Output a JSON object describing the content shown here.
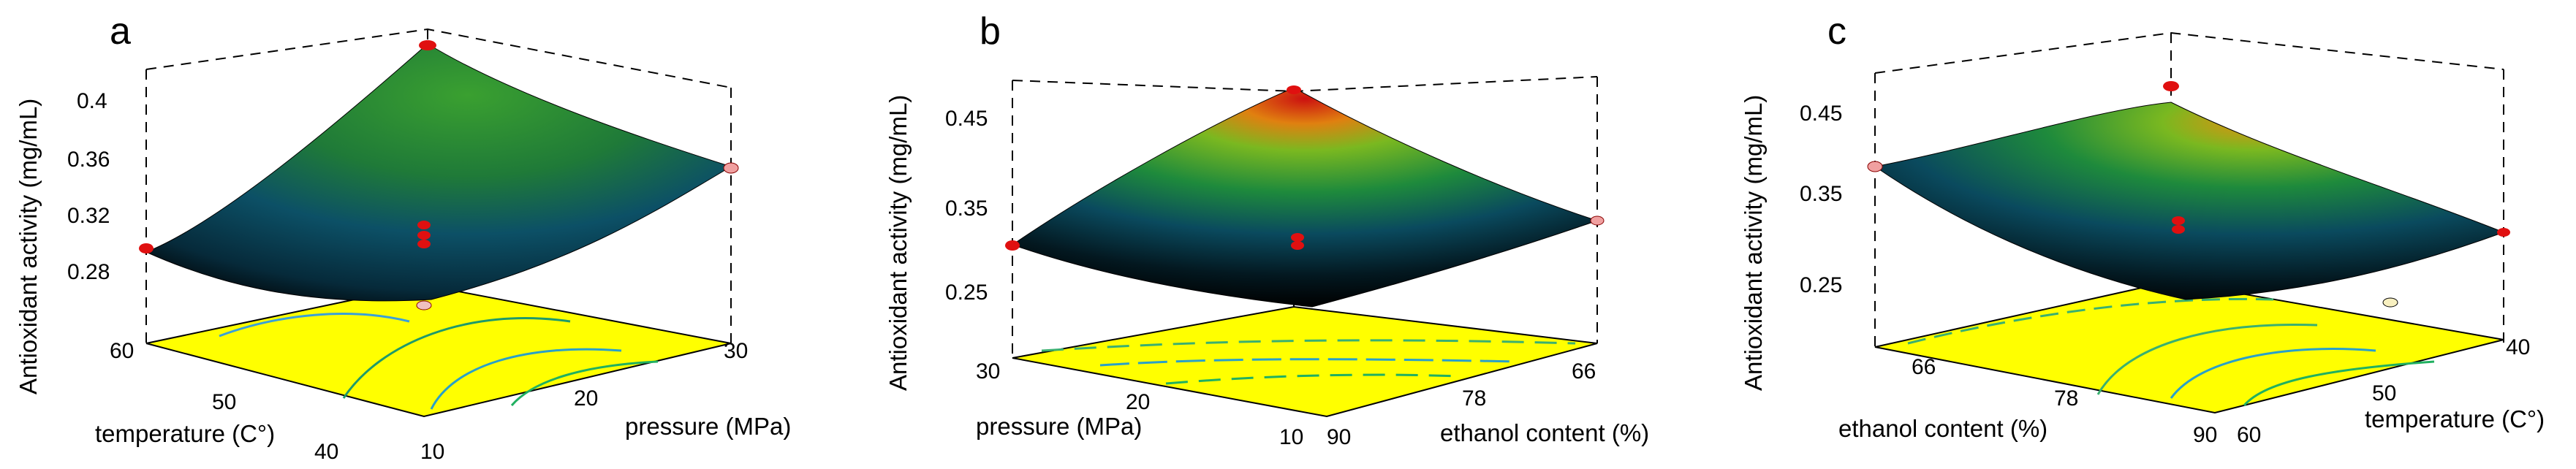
{
  "chart_data": [
    {
      "type": "surface",
      "panel": "a",
      "zlabel": "Antioxidant activity (mg/mL)",
      "xlabel": "temperature (C°)",
      "ylabel": "pressure (MPa)",
      "z_ticks": [
        "0.28",
        "0.32",
        "0.36",
        "0.4"
      ],
      "x_ticks": [
        "40",
        "50",
        "60"
      ],
      "y_ticks": [
        "10",
        "20",
        "30"
      ],
      "xlim": [
        40,
        60
      ],
      "ylim": [
        10,
        30
      ],
      "zlim": [
        0.26,
        0.42
      ],
      "corners": [
        {
          "x": 60,
          "y": 10,
          "z": 0.29
        },
        {
          "x": 40,
          "y": 10,
          "z": 0.43
        },
        {
          "x": 40,
          "y": 30,
          "z": 0.35
        },
        {
          "x": 60,
          "y": 30,
          "z": 0.27
        }
      ],
      "center": {
        "x": 50,
        "y": 20,
        "z": 0.31
      },
      "floor_color": "#ffff00",
      "surface_colors": [
        "#000000",
        "#0a5a6e",
        "#1e8a3c",
        "#7ab820",
        "#e8a010",
        "#cc1010"
      ]
    },
    {
      "type": "surface",
      "panel": "b",
      "zlabel": "Antioxidant activity (mg/mL)",
      "xlabel": "pressure (MPa)",
      "ylabel": "ethanol content (%)",
      "z_ticks": [
        "0.25",
        "0.35",
        "0.45"
      ],
      "x_ticks": [
        "30",
        "20",
        "10"
      ],
      "y_ticks": [
        "90",
        "78",
        "66"
      ],
      "xlim": [
        10,
        30
      ],
      "ylim": [
        60,
        90
      ],
      "zlim": [
        0.22,
        0.48
      ],
      "corners": [
        {
          "x": 30,
          "y": 90,
          "z": 0.32
        },
        {
          "x": 10,
          "y": 90,
          "z": 0.24
        },
        {
          "x": 10,
          "y": 60,
          "z": 0.33
        },
        {
          "x": 30,
          "y": 60,
          "z": 0.46
        }
      ],
      "center": {
        "x": 20,
        "y": 75,
        "z": 0.33
      },
      "floor_color": "#ffff00",
      "surface_colors": [
        "#000000",
        "#0a5a6e",
        "#1e8a3c",
        "#7ab820",
        "#e8a010",
        "#cc1010"
      ]
    },
    {
      "type": "surface",
      "panel": "c",
      "zlabel": "Antioxidant activity (mg/mL)",
      "xlabel": "ethanol content (%)",
      "ylabel": "temperature (C°)",
      "z_ticks": [
        "0.25",
        "0.35",
        "0.45"
      ],
      "x_ticks": [
        "66",
        "78",
        "90"
      ],
      "y_ticks": [
        "60",
        "50",
        "40"
      ],
      "xlim": [
        60,
        90
      ],
      "ylim": [
        40,
        60
      ],
      "zlim": [
        0.22,
        0.48
      ],
      "corners": [
        {
          "x": 60,
          "y": 60,
          "z": 0.37
        },
        {
          "x": 90,
          "y": 60,
          "z": 0.27
        },
        {
          "x": 90,
          "y": 40,
          "z": 0.31
        },
        {
          "x": 60,
          "y": 40,
          "z": 0.44
        }
      ],
      "center": {
        "x": 75,
        "y": 50,
        "z": 0.32
      },
      "floor_color": "#ffff00",
      "surface_colors": [
        "#000000",
        "#0a5a6e",
        "#1e8a3c",
        "#7ab820",
        "#e8a010",
        "#cc1010"
      ]
    }
  ]
}
